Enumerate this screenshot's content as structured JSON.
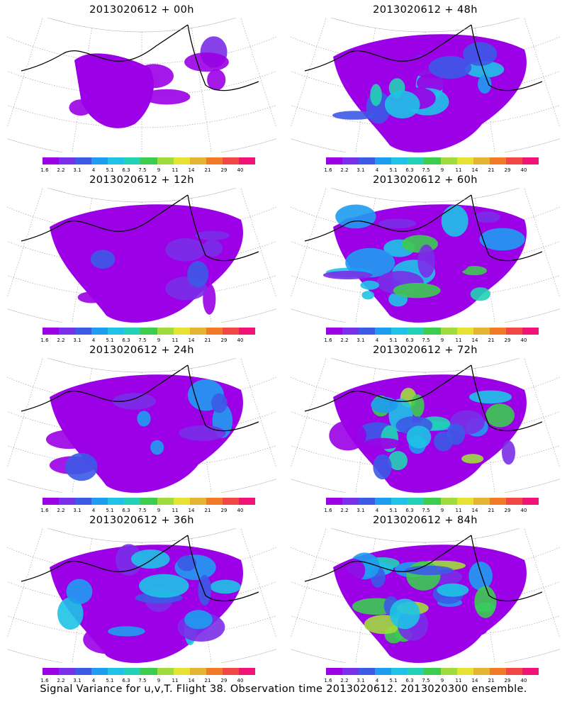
{
  "panels": [
    {
      "title": "2013020612 + 00h",
      "level": 0
    },
    {
      "title": "2013020612 + 48h",
      "level": 4
    },
    {
      "title": "2013020612 + 12h",
      "level": 1
    },
    {
      "title": "2013020612 + 60h",
      "level": 5
    },
    {
      "title": "2013020612 + 24h",
      "level": 2
    },
    {
      "title": "2013020612 + 72h",
      "level": 6
    },
    {
      "title": "2013020612 + 36h",
      "level": 3
    },
    {
      "title": "2013020612 + 84h",
      "level": 7
    }
  ],
  "colorbar": {
    "colors": [
      "#9b00e6",
      "#7a2ee8",
      "#3c5ae6",
      "#1e9cf0",
      "#1ec3e6",
      "#22d2b4",
      "#3ccc50",
      "#a0dc3c",
      "#e6e132",
      "#e6b432",
      "#f07a28",
      "#f04646",
      "#f0147a"
    ],
    "labels": [
      "1.6",
      "2.2",
      "3.1",
      "4",
      "5.1",
      "6.3",
      "7.5",
      "9",
      "11",
      "14",
      "21",
      "29",
      "40"
    ]
  },
  "caption": "Signal Variance for u,v,T. Flight 38. Observation time 2013020612. 2013020300 ensemble."
}
